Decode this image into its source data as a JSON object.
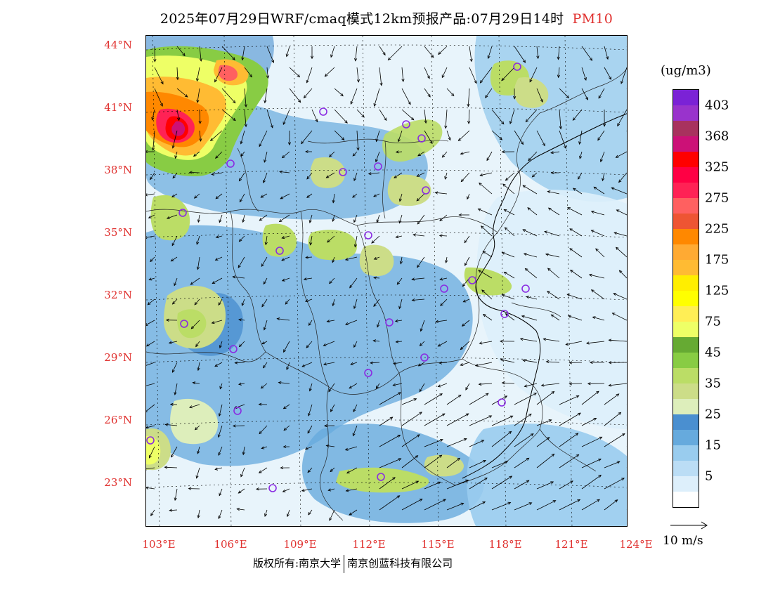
{
  "title": {
    "text": "2025年07月29日WRF/cmaq模式12km预报产品:07月29日14时",
    "pollutant": "PM10"
  },
  "map": {
    "lat_labels": [
      "44°N",
      "41°N",
      "38°N",
      "35°N",
      "32°N",
      "29°N",
      "26°N",
      "23°N"
    ],
    "lon_labels": [
      "103°E",
      "106°E",
      "109°E",
      "112°E",
      "115°E",
      "118°E",
      "121°E",
      "124°E"
    ],
    "background_color": "#e8f4fb",
    "station_marker_color": "#8a2be2"
  },
  "colorbar": {
    "unit": "(ug/m3)",
    "labels": [
      "403",
      "368",
      "325",
      "275",
      "225",
      "175",
      "125",
      "75",
      "45",
      "35",
      "25",
      "15",
      "5"
    ],
    "colors_top_to_bottom": [
      "#7b22d6",
      "#9933cc",
      "#a8325e",
      "#cc1177",
      "#ff0000",
      "#ff0044",
      "#ff2255",
      "#ff6060",
      "#ee5533",
      "#ff8800",
      "#ffaa33",
      "#ffbb33",
      "#ffee00",
      "#ffff00",
      "#ffee55",
      "#eeff66",
      "#66aa33",
      "#88cc44",
      "#bbdd66",
      "#ccdd88",
      "#ddeebb",
      "#4a8fd0",
      "#66aadd",
      "#99ccee",
      "#bbddf5",
      "#ddeffb",
      "#ffffff"
    ]
  },
  "wind_reference": {
    "label": "10 m/s"
  },
  "copyright": {
    "left": "版权所有:南京大学",
    "right": "南京创蓝科技有限公司"
  }
}
